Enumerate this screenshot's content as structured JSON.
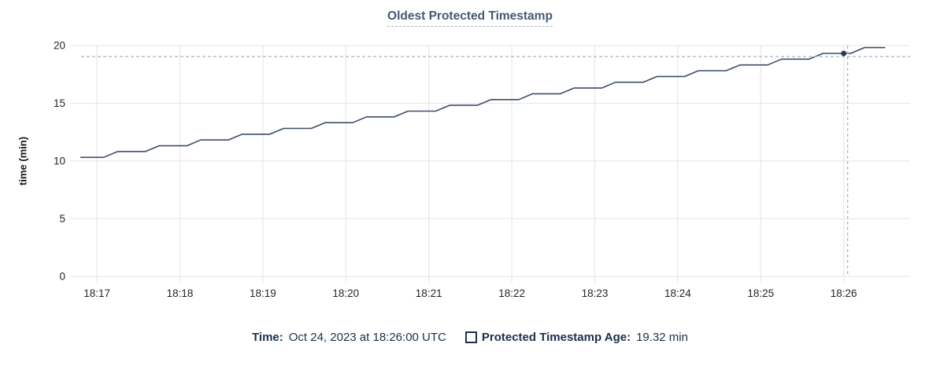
{
  "chart_data": {
    "type": "line",
    "title": "Oldest Protected Timestamp",
    "xlabel": "",
    "ylabel": "time (min)",
    "ylim": [
      0,
      20
    ],
    "yticks": [
      0,
      5,
      10,
      15,
      20
    ],
    "xticks": [
      "18:17",
      "18:18",
      "18:19",
      "18:20",
      "18:21",
      "18:22",
      "18:23",
      "18:24",
      "18:25",
      "18:26"
    ],
    "x_range": [
      "18:16:44",
      "18:26:48"
    ],
    "grid": true,
    "legend_position": "bottom",
    "series": [
      {
        "name": "Protected Timestamp Age",
        "points": [
          [
            "18:16:48",
            10.32
          ],
          [
            "18:17:05",
            10.32
          ],
          [
            "18:17:15",
            10.82
          ],
          [
            "18:17:35",
            10.82
          ],
          [
            "18:17:45",
            11.32
          ],
          [
            "18:18:05",
            11.32
          ],
          [
            "18:18:15",
            11.82
          ],
          [
            "18:18:35",
            11.82
          ],
          [
            "18:18:45",
            12.32
          ],
          [
            "18:19:05",
            12.32
          ],
          [
            "18:19:15",
            12.82
          ],
          [
            "18:19:35",
            12.82
          ],
          [
            "18:19:45",
            13.32
          ],
          [
            "18:20:05",
            13.32
          ],
          [
            "18:20:15",
            13.82
          ],
          [
            "18:20:35",
            13.82
          ],
          [
            "18:20:45",
            14.32
          ],
          [
            "18:21:05",
            14.32
          ],
          [
            "18:21:15",
            14.82
          ],
          [
            "18:21:35",
            14.82
          ],
          [
            "18:21:45",
            15.32
          ],
          [
            "18:22:05",
            15.32
          ],
          [
            "18:22:15",
            15.82
          ],
          [
            "18:22:35",
            15.82
          ],
          [
            "18:22:45",
            16.32
          ],
          [
            "18:23:05",
            16.32
          ],
          [
            "18:23:15",
            16.82
          ],
          [
            "18:23:35",
            16.82
          ],
          [
            "18:23:45",
            17.32
          ],
          [
            "18:24:05",
            17.32
          ],
          [
            "18:24:15",
            17.82
          ],
          [
            "18:24:35",
            17.82
          ],
          [
            "18:24:45",
            18.32
          ],
          [
            "18:25:05",
            18.32
          ],
          [
            "18:25:15",
            18.82
          ],
          [
            "18:25:35",
            18.82
          ],
          [
            "18:25:45",
            19.32
          ],
          [
            "18:26:05",
            19.32
          ],
          [
            "18:26:15",
            19.82
          ],
          [
            "18:26:30",
            19.82
          ]
        ]
      }
    ],
    "hover": {
      "time": "18:26:00",
      "value": 19.32
    }
  },
  "colors": {
    "series": "#3e4d64",
    "dot": "#2c3b52",
    "grid": "#e9eaec",
    "axis_text": "#1f2428",
    "crosshair": "#a3b5c3",
    "title": "#475872",
    "legend_text": "#1a304b"
  },
  "legend": {
    "time_label": "Time:",
    "time_value": "Oct 24, 2023 at 18:26:00 UTC",
    "series_label": "Protected Timestamp Age:",
    "series_value": "19.32 min"
  }
}
